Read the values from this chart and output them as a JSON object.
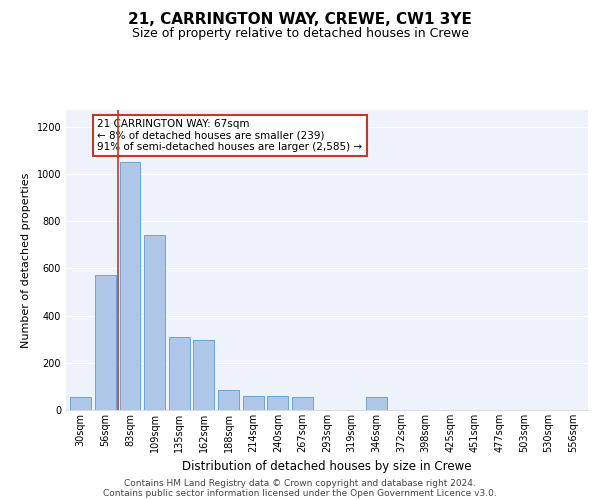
{
  "title": "21, CARRINGTON WAY, CREWE, CW1 3YE",
  "subtitle": "Size of property relative to detached houses in Crewe",
  "xlabel": "Distribution of detached houses by size in Crewe",
  "ylabel": "Number of detached properties",
  "bar_labels": [
    "30sqm",
    "56sqm",
    "83sqm",
    "109sqm",
    "135sqm",
    "162sqm",
    "188sqm",
    "214sqm",
    "240sqm",
    "267sqm",
    "293sqm",
    "319sqm",
    "346sqm",
    "372sqm",
    "398sqm",
    "425sqm",
    "451sqm",
    "477sqm",
    "503sqm",
    "530sqm",
    "556sqm"
  ],
  "bar_values": [
    55,
    570,
    1050,
    740,
    310,
    295,
    85,
    60,
    60,
    55,
    0,
    0,
    55,
    0,
    0,
    0,
    0,
    0,
    0,
    0,
    0
  ],
  "bar_color": "#aec6e8",
  "bar_edge_color": "#5b9bd5",
  "vline_color": "#c0392b",
  "vline_x": 1.5,
  "annotation_text": "21 CARRINGTON WAY: 67sqm\n← 8% of detached houses are smaller (239)\n91% of semi-detached houses are larger (2,585) →",
  "annotation_box_color": "#c0392b",
  "ylim": [
    0,
    1270
  ],
  "yticks": [
    0,
    200,
    400,
    600,
    800,
    1000,
    1200
  ],
  "footer_line1": "Contains HM Land Registry data © Crown copyright and database right 2024.",
  "footer_line2": "Contains public sector information licensed under the Open Government Licence v3.0.",
  "bg_color": "#eef3fb",
  "grid_color": "#ffffff",
  "title_fontsize": 11,
  "subtitle_fontsize": 9,
  "xlabel_fontsize": 8.5,
  "ylabel_fontsize": 8,
  "tick_fontsize": 7,
  "footer_fontsize": 6.5,
  "ann_fontsize": 7.5
}
